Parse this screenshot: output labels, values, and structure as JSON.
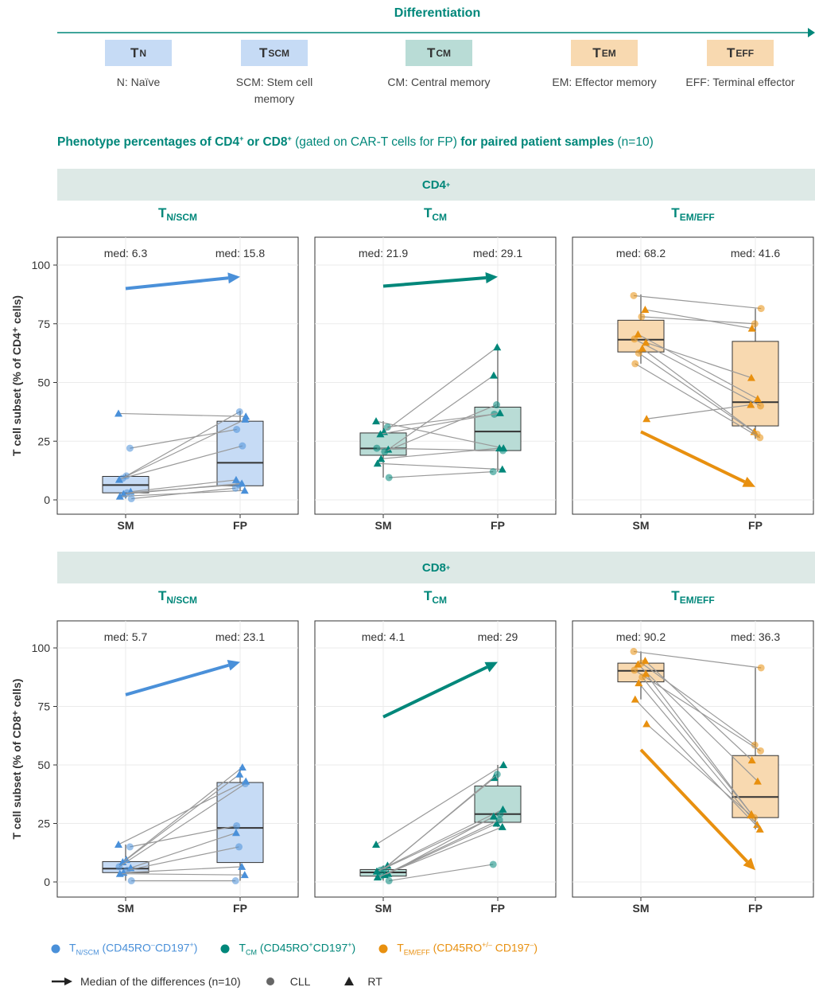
{
  "header": {
    "differentiation_label": "Differentiation",
    "subsets": [
      {
        "symbol": "T",
        "sub": "N",
        "color": "#c6dbf5",
        "caption": "N: Naïve"
      },
      {
        "symbol": "T",
        "sub": "SCM",
        "color": "#c6dbf5",
        "caption": "SCM: Stem cell memory"
      },
      {
        "symbol": "T",
        "sub": "CM",
        "color": "#b9dcd6",
        "caption": "CM: Central memory"
      },
      {
        "symbol": "T",
        "sub": "EM",
        "color": "#f8d9b0",
        "caption": "EM: Effector memory"
      },
      {
        "symbol": "T",
        "sub": "EFF",
        "color": "#f8d9b0",
        "caption": "EFF: Terminal effector"
      }
    ]
  },
  "headline": {
    "part1": "Phenotype percentages of CD4",
    "sup1": "+",
    "part2": " or CD8",
    "sup2": "+",
    "part3": " (gated on CAR-T cells for FP) ",
    "part4": "for paired patient samples",
    "part5": " (n=10)"
  },
  "colors": {
    "blue": "#4a90d9",
    "teal": "#00877a",
    "orange": "#e8900f",
    "blue_fill": "#c6dbf5",
    "teal_fill": "#b9dcd6",
    "orange_fill": "#f8d9b0",
    "band": "#dde9e6"
  },
  "legend": {
    "items": [
      {
        "label": "T",
        "sub": "N/SCM",
        "text": " (CD45RO",
        "sup1": "–",
        "text2": "CD197",
        "sup2": "+",
        "text3": ")",
        "color": "#4a90d9"
      },
      {
        "label": "T",
        "sub": "CM",
        "text": " (CD45RO",
        "sup1": "+",
        "text2": "CD197",
        "sup2": "+",
        "text3": ")",
        "color": "#00877a"
      },
      {
        "label": "T",
        "sub": "EM/EFF",
        "text": " (CD45RO",
        "sup1": "+/–",
        "text2": " CD197",
        "sup2": "–",
        "text3": ")",
        "color": "#e8900f"
      }
    ],
    "arrow_label": "Median of the differences (n=10)",
    "circle_label": "CLL",
    "triangle_label": "RT"
  },
  "chart_data": [
    {
      "type": "box-paired",
      "group": "CD4",
      "group_sup": "+",
      "subset": "N/SCM",
      "color": "blue",
      "xlabel": "",
      "ylabel": "T cell subset (% of CD4⁺ cells)",
      "categories": [
        "SM",
        "FP"
      ],
      "ylim": [
        0,
        100
      ],
      "yticks": [
        0,
        25,
        50,
        75,
        100
      ],
      "medians": [
        "med: 6.3",
        "med: 15.8"
      ],
      "box": {
        "SM": {
          "q1": 3.0,
          "median": 6.3,
          "q3": 10.0,
          "whisker_low": 0.5,
          "whisker_high": 11
        },
        "FP": {
          "q1": 6.0,
          "median": 15.8,
          "q3": 33.5,
          "whisker_low": 4,
          "whisker_high": 38
        }
      },
      "pairs": [
        [
          36.8,
          35.5,
          "tri"
        ],
        [
          22,
          30,
          "circ"
        ],
        [
          10.2,
          37.5,
          "circ"
        ],
        [
          9.2,
          23,
          "circ"
        ],
        [
          8.6,
          34.3,
          "tri"
        ],
        [
          3.5,
          8.5,
          "tri"
        ],
        [
          3.0,
          6.5,
          "circ"
        ],
        [
          2.5,
          7.0,
          "tri"
        ],
        [
          1.5,
          4.0,
          "tri"
        ],
        [
          0.5,
          5.0,
          "circ"
        ]
      ],
      "arrow": [
        90,
        95
      ]
    },
    {
      "type": "box-paired",
      "group": "CD4",
      "group_sup": "+",
      "subset": "CM",
      "color": "teal",
      "xlabel": "",
      "ylabel": "",
      "categories": [
        "SM",
        "FP"
      ],
      "ylim": [
        0,
        100
      ],
      "yticks": [
        0,
        25,
        50,
        75,
        100
      ],
      "medians": [
        "med: 21.9",
        "med: 29.1"
      ],
      "box": {
        "SM": {
          "q1": 19.0,
          "median": 21.9,
          "q3": 28.5,
          "whisker_low": 9.5,
          "whisker_high": 33.5
        },
        "FP": {
          "q1": 21.0,
          "median": 29.1,
          "q3": 39.5,
          "whisker_low": 12,
          "whisker_high": 65
        }
      },
      "pairs": [
        [
          33.5,
          22,
          "tri"
        ],
        [
          31,
          36.5,
          "circ"
        ],
        [
          29,
          65,
          "tri"
        ],
        [
          28,
          37,
          "tri"
        ],
        [
          22,
          21,
          "circ"
        ],
        [
          21.5,
          53,
          "tri"
        ],
        [
          20.5,
          40.5,
          "circ"
        ],
        [
          17.5,
          22,
          "tri"
        ],
        [
          15.5,
          13,
          "tri"
        ],
        [
          9.5,
          12,
          "circ"
        ]
      ],
      "arrow": [
        91,
        95
      ]
    },
    {
      "type": "box-paired",
      "group": "CD4",
      "group_sup": "+",
      "subset": "EM/EFF",
      "color": "orange",
      "xlabel": "",
      "ylabel": "",
      "categories": [
        "SM",
        "FP"
      ],
      "ylim": [
        0,
        100
      ],
      "yticks": [
        0,
        25,
        50,
        75,
        100
      ],
      "medians": [
        "med: 68.2",
        "med: 41.6"
      ],
      "box": {
        "SM": {
          "q1": 63.0,
          "median": 68.2,
          "q3": 76.5,
          "whisker_low": 58,
          "whisker_high": 87.5
        },
        "FP": {
          "q1": 31.5,
          "median": 41.6,
          "q3": 67.5,
          "whisker_low": 26,
          "whisker_high": 81.5
        }
      },
      "pairs": [
        [
          87,
          81.5,
          "circ"
        ],
        [
          81,
          73,
          "tri"
        ],
        [
          78,
          75,
          "circ"
        ],
        [
          70.5,
          43,
          "tri"
        ],
        [
          68.5,
          40,
          "circ"
        ],
        [
          67,
          52,
          "tri"
        ],
        [
          64.5,
          29,
          "tri"
        ],
        [
          62.5,
          28,
          "circ"
        ],
        [
          58,
          26.5,
          "circ"
        ],
        [
          34.5,
          40.5,
          "tri"
        ]
      ],
      "arrow": [
        29,
        5.5
      ]
    },
    {
      "type": "box-paired",
      "group": "CD8",
      "group_sup": "+",
      "subset": "N/SCM",
      "color": "blue",
      "xlabel": "",
      "ylabel": "T cell subset (% of CD8⁺ cells)",
      "categories": [
        "SM",
        "FP"
      ],
      "ylim": [
        0,
        100
      ],
      "yticks": [
        0,
        25,
        50,
        75,
        100
      ],
      "medians": [
        "med: 5.7",
        "med: 23.1"
      ],
      "box": {
        "SM": {
          "q1": 4.0,
          "median": 5.7,
          "q3": 8.7,
          "whisker_low": 0.5,
          "whisker_high": 16
        },
        "FP": {
          "q1": 8.3,
          "median": 23.1,
          "q3": 42.5,
          "whisker_low": 0.5,
          "whisker_high": 49
        }
      },
      "pairs": [
        [
          16,
          43,
          "tri"
        ],
        [
          15,
          24,
          "circ"
        ],
        [
          9.5,
          46,
          "tri"
        ],
        [
          8.5,
          49,
          "tri"
        ],
        [
          6.5,
          42,
          "circ"
        ],
        [
          6,
          21,
          "tri"
        ],
        [
          5,
          15,
          "circ"
        ],
        [
          4,
          6.5,
          "tri"
        ],
        [
          3.5,
          3,
          "tri"
        ],
        [
          0.5,
          0.5,
          "circ"
        ]
      ],
      "arrow": [
        80,
        94
      ]
    },
    {
      "type": "box-paired",
      "group": "CD8",
      "group_sup": "+",
      "subset": "CM",
      "color": "teal",
      "xlabel": "",
      "ylabel": "",
      "categories": [
        "SM",
        "FP"
      ],
      "ylim": [
        0,
        100
      ],
      "yticks": [
        0,
        25,
        50,
        75,
        100
      ],
      "medians": [
        "med: 4.1",
        "med: 29"
      ],
      "box": {
        "SM": {
          "q1": 2.5,
          "median": 4.1,
          "q3": 5.3,
          "whisker_low": 0.5,
          "whisker_high": 7
        },
        "FP": {
          "q1": 25.5,
          "median": 29,
          "q3": 41,
          "whisker_low": 23.5,
          "whisker_high": 50
        }
      },
      "pairs": [
        [
          16,
          50,
          "tri"
        ],
        [
          7,
          44.5,
          "tri"
        ],
        [
          5.5,
          46,
          "circ"
        ],
        [
          5,
          29,
          "circ"
        ],
        [
          4.5,
          31,
          "tri"
        ],
        [
          3.5,
          28,
          "tri"
        ],
        [
          3,
          25,
          "tri"
        ],
        [
          2.5,
          26.5,
          "circ"
        ],
        [
          2,
          23.5,
          "tri"
        ],
        [
          0.5,
          7.5,
          "circ"
        ]
      ],
      "arrow": [
        70.5,
        94
      ]
    },
    {
      "type": "box-paired",
      "group": "CD8",
      "group_sup": "+",
      "subset": "EM/EFF",
      "color": "orange",
      "xlabel": "",
      "ylabel": "",
      "categories": [
        "SM",
        "FP"
      ],
      "ylim": [
        0,
        100
      ],
      "yticks": [
        0,
        25,
        50,
        75,
        100
      ],
      "medians": [
        "med: 90.2",
        "med: 36.3"
      ],
      "box": {
        "SM": {
          "q1": 85.5,
          "median": 90.2,
          "q3": 93.5,
          "whisker_low": 78,
          "whisker_high": 98.5
        },
        "FP": {
          "q1": 27.5,
          "median": 36.3,
          "q3": 54,
          "whisker_low": 22.5,
          "whisker_high": 91.5
        }
      },
      "pairs": [
        [
          98.5,
          91.5,
          "circ"
        ],
        [
          94.5,
          52,
          "tri"
        ],
        [
          93.5,
          58.5,
          "circ"
        ],
        [
          93,
          43,
          "tri"
        ],
        [
          90.5,
          56,
          "circ"
        ],
        [
          89,
          29,
          "tri"
        ],
        [
          87.5,
          27.5,
          "circ"
        ],
        [
          85,
          24.5,
          "tri"
        ],
        [
          78,
          22.5,
          "tri"
        ],
        [
          67.5,
          28.5,
          "tri"
        ]
      ],
      "arrow": [
        56.5,
        5
      ]
    }
  ]
}
